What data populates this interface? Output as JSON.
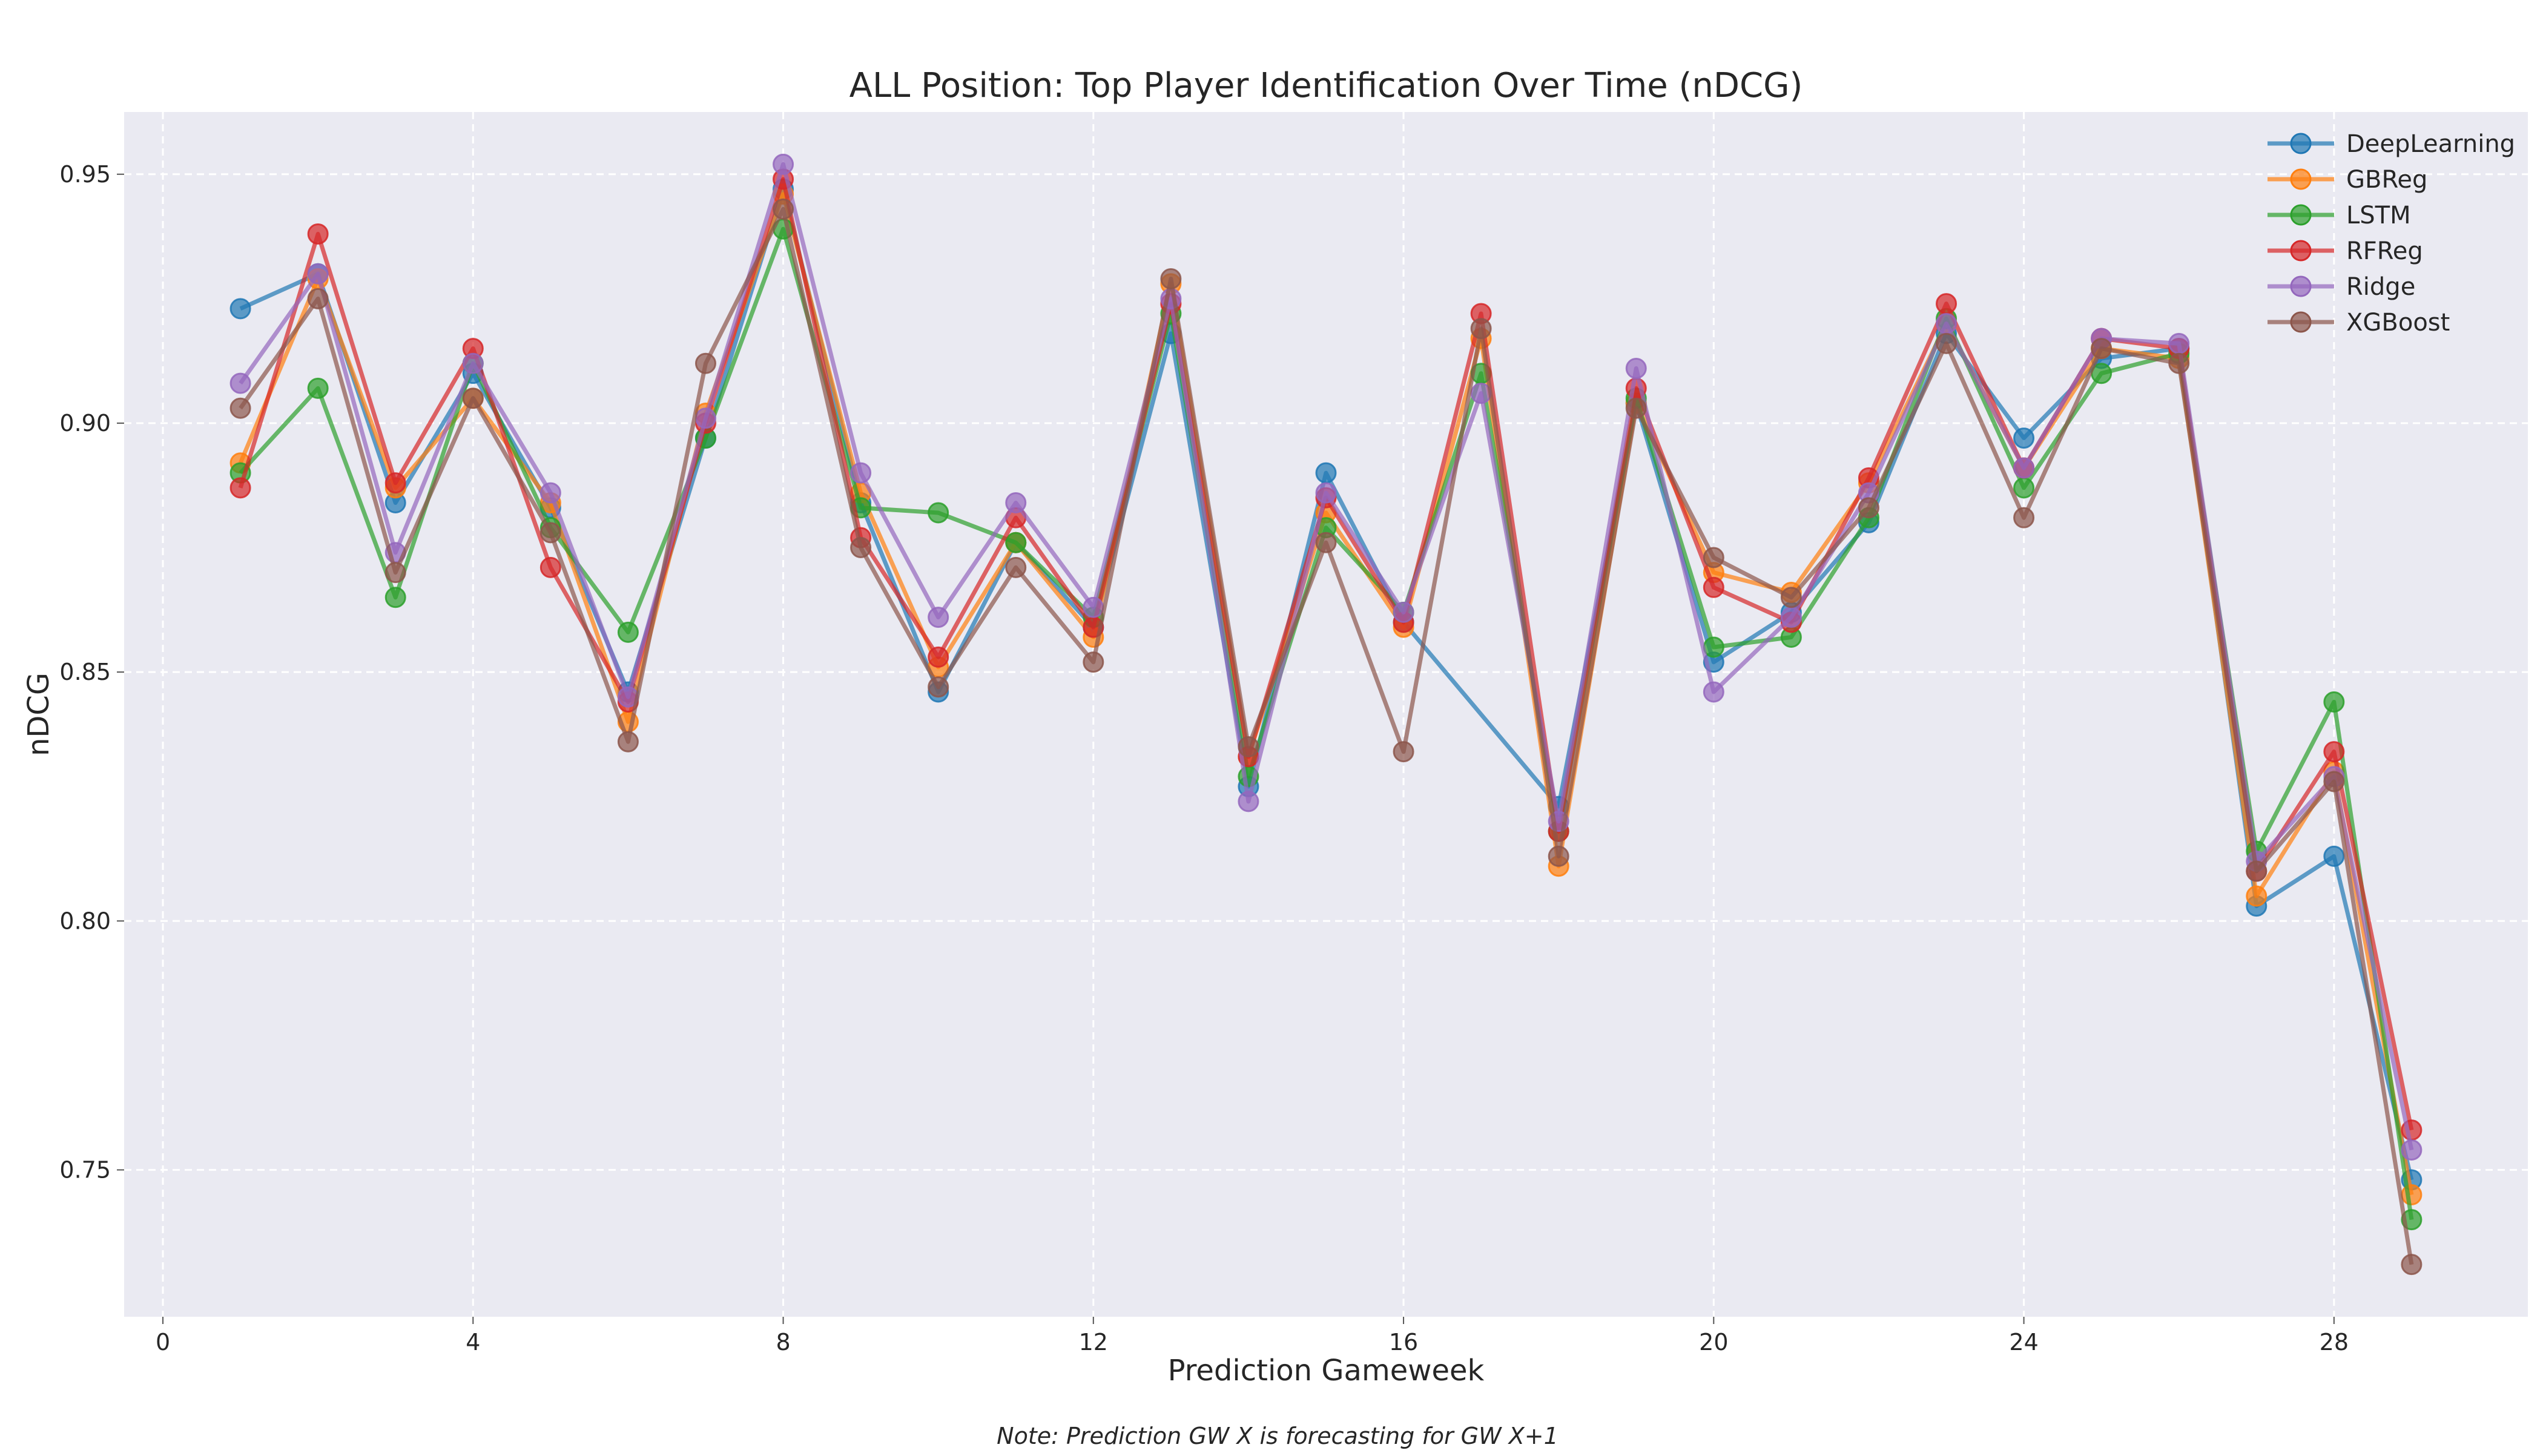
{
  "chart_data": {
    "type": "line",
    "title": "ALL Position: Top Player Identification Over Time (nDCG)",
    "xlabel": "Prediction Gameweek",
    "ylabel": "nDCG",
    "note": "Note: Prediction GW X is forecasting for GW X+1",
    "xlim": [
      -0.5,
      30.5
    ],
    "ylim": [
      0.7205,
      0.9625
    ],
    "x_ticks": [
      0,
      4,
      8,
      12,
      16,
      20,
      24,
      28
    ],
    "y_ticks": [
      0.75,
      0.8,
      0.85,
      0.9,
      0.95
    ],
    "y_tick_labels": [
      "0.75",
      "0.80",
      "0.85",
      "0.90",
      "0.95"
    ],
    "grid": true,
    "legend_position": "top-right",
    "x": [
      1,
      2,
      3,
      4,
      5,
      6,
      7,
      8,
      9,
      10,
      11,
      12,
      13,
      14,
      15,
      16,
      17,
      18,
      19,
      20,
      21,
      22,
      23,
      24,
      25,
      26,
      27,
      28,
      29
    ],
    "series": [
      {
        "name": "DeepLearning",
        "color": "#1f77b4",
        "x": [
          1,
          2,
          3,
          4,
          5,
          6,
          7,
          8,
          9,
          10,
          11,
          12,
          13,
          14,
          15,
          16,
          18,
          19,
          20,
          21,
          22,
          23,
          24,
          25,
          26,
          27,
          28,
          29
        ],
        "values": [
          0.923,
          0.93,
          0.884,
          0.91,
          0.883,
          0.846,
          0.897,
          0.947,
          0.884,
          0.846,
          0.876,
          0.859,
          0.918,
          0.827,
          0.89,
          0.86,
          0.823,
          0.904,
          0.852,
          0.862,
          0.88,
          0.918,
          0.897,
          0.913,
          0.915,
          0.803,
          0.813,
          0.748
        ]
      },
      {
        "name": "GBReg",
        "color": "#ff7f0e",
        "x": [
          1,
          2,
          3,
          4,
          5,
          6,
          7,
          8,
          9,
          10,
          11,
          12,
          13,
          14,
          15,
          16,
          17,
          18,
          19,
          20,
          21,
          22,
          23,
          24,
          25,
          26,
          27,
          28,
          29
        ],
        "values": [
          0.892,
          0.929,
          0.887,
          0.905,
          0.884,
          0.84,
          0.902,
          0.946,
          0.886,
          0.851,
          0.876,
          0.857,
          0.928,
          0.833,
          0.882,
          0.859,
          0.917,
          0.811,
          0.904,
          0.87,
          0.866,
          0.888,
          0.92,
          0.891,
          0.915,
          0.913,
          0.805,
          0.83,
          0.745
        ]
      },
      {
        "name": "LSTM",
        "color": "#2ca02c",
        "x": [
          1,
          2,
          3,
          4,
          5,
          6,
          7,
          8,
          9,
          10,
          11,
          12,
          13,
          14,
          15,
          16,
          17,
          18,
          19,
          20,
          21,
          22,
          23,
          24,
          25,
          26,
          27,
          28,
          29
        ],
        "values": [
          0.89,
          0.907,
          0.865,
          0.912,
          0.879,
          0.858,
          0.897,
          0.939,
          0.883,
          0.882,
          0.876,
          0.861,
          0.922,
          0.829,
          0.879,
          0.862,
          0.91,
          0.818,
          0.905,
          0.855,
          0.857,
          0.881,
          0.921,
          0.887,
          0.91,
          0.914,
          0.814,
          0.844,
          0.74
        ]
      },
      {
        "name": "RFReg",
        "color": "#d62728",
        "x": [
          1,
          2,
          3,
          4,
          5,
          6,
          7,
          8,
          9,
          10,
          11,
          12,
          13,
          14,
          15,
          16,
          17,
          18,
          19,
          20,
          21,
          22,
          23,
          24,
          25,
          26,
          27,
          28,
          29
        ],
        "values": [
          0.887,
          0.938,
          0.888,
          0.915,
          0.871,
          0.844,
          0.9,
          0.949,
          0.877,
          0.853,
          0.881,
          0.859,
          0.924,
          0.833,
          0.885,
          0.86,
          0.922,
          0.818,
          0.907,
          0.867,
          0.86,
          0.889,
          0.924,
          0.891,
          0.917,
          0.915,
          0.81,
          0.834,
          0.758
        ]
      },
      {
        "name": "Ridge",
        "color": "#9467bd",
        "x": [
          1,
          2,
          3,
          4,
          5,
          6,
          7,
          8,
          9,
          10,
          11,
          12,
          13,
          14,
          15,
          16,
          17,
          18,
          19,
          20,
          21,
          22,
          23,
          24,
          25,
          26,
          27,
          28,
          29
        ],
        "values": [
          0.908,
          0.93,
          0.874,
          0.912,
          0.886,
          0.845,
          0.901,
          0.952,
          0.89,
          0.861,
          0.884,
          0.863,
          0.925,
          0.824,
          0.886,
          0.862,
          0.906,
          0.82,
          0.911,
          0.846,
          0.861,
          0.886,
          0.92,
          0.891,
          0.917,
          0.916,
          0.812,
          0.829,
          0.754
        ]
      },
      {
        "name": "XGBoost",
        "color": "#8c564b",
        "x": [
          1,
          2,
          3,
          4,
          5,
          6,
          7,
          8,
          9,
          10,
          11,
          12,
          13,
          14,
          15,
          16,
          17,
          18,
          19,
          20,
          21,
          22,
          23,
          24,
          25,
          26,
          27,
          28,
          29
        ],
        "values": [
          0.903,
          0.925,
          0.87,
          0.905,
          0.878,
          0.836,
          0.912,
          0.943,
          0.875,
          0.847,
          0.871,
          0.852,
          0.929,
          0.835,
          0.876,
          0.834,
          0.919,
          0.813,
          0.903,
          0.873,
          0.865,
          0.883,
          0.916,
          0.881,
          0.915,
          0.912,
          0.81,
          0.828,
          0.731
        ]
      }
    ]
  }
}
